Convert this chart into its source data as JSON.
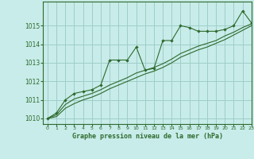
{
  "background_color": "#c8ece9",
  "grid_color": "#9ecec9",
  "line_color": "#2d6a2d",
  "title": "Graphe pression niveau de la mer (hPa)",
  "xlim": [
    -0.5,
    23
  ],
  "ylim": [
    1009.7,
    1016.3
  ],
  "yticks": [
    1010,
    1011,
    1012,
    1013,
    1014,
    1015
  ],
  "xticks": [
    0,
    1,
    2,
    3,
    4,
    5,
    6,
    7,
    8,
    9,
    10,
    11,
    12,
    13,
    14,
    15,
    16,
    17,
    18,
    19,
    20,
    21,
    22,
    23
  ],
  "series1_x": [
    0,
    1,
    2,
    3,
    4,
    5,
    6,
    7,
    8,
    9,
    10,
    11,
    12,
    13,
    14,
    15,
    16,
    17,
    18,
    19,
    20,
    21,
    22,
    23
  ],
  "series1_y": [
    1010.0,
    1010.3,
    1011.0,
    1011.35,
    1011.45,
    1011.55,
    1011.8,
    1013.15,
    1013.15,
    1013.15,
    1013.85,
    1012.6,
    1012.7,
    1014.2,
    1014.2,
    1015.0,
    1014.9,
    1014.7,
    1014.7,
    1014.7,
    1014.8,
    1015.0,
    1015.8,
    1015.15
  ],
  "series2_x": [
    0,
    1,
    2,
    3,
    4,
    5,
    6,
    7,
    8,
    9,
    10,
    11,
    12,
    13,
    14,
    15,
    16,
    17,
    18,
    19,
    20,
    21,
    22,
    23
  ],
  "series2_y": [
    1010.0,
    1010.2,
    1010.75,
    1011.05,
    1011.2,
    1011.35,
    1011.55,
    1011.8,
    1012.0,
    1012.2,
    1012.45,
    1012.6,
    1012.75,
    1012.95,
    1013.2,
    1013.5,
    1013.7,
    1013.9,
    1014.05,
    1014.2,
    1014.45,
    1014.65,
    1014.9,
    1015.1
  ],
  "series3_x": [
    0,
    1,
    2,
    3,
    4,
    5,
    6,
    7,
    8,
    9,
    10,
    11,
    12,
    13,
    14,
    15,
    16,
    17,
    18,
    19,
    20,
    21,
    22,
    23
  ],
  "series3_y": [
    1010.0,
    1010.1,
    1010.55,
    1010.8,
    1011.0,
    1011.15,
    1011.35,
    1011.6,
    1011.8,
    1012.0,
    1012.2,
    1012.4,
    1012.55,
    1012.75,
    1013.0,
    1013.3,
    1013.5,
    1013.7,
    1013.85,
    1014.05,
    1014.25,
    1014.5,
    1014.75,
    1015.0
  ]
}
